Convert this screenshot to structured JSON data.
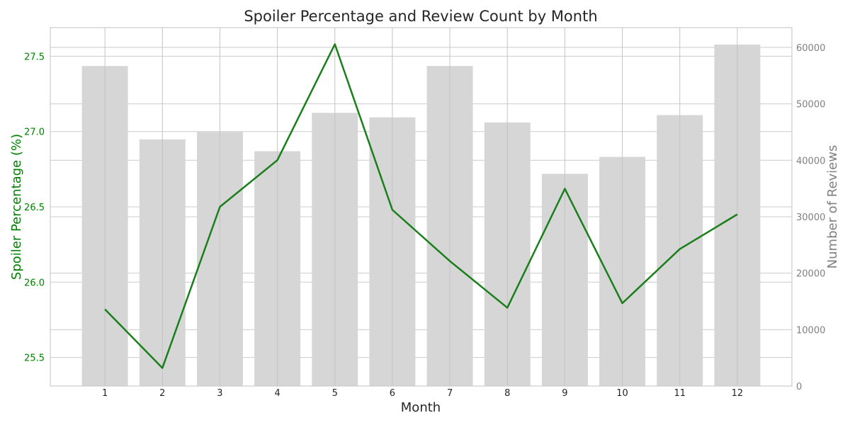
{
  "chart_data": {
    "type": "bar",
    "title": "Spoiler Percentage and Review Count by Month",
    "xlabel": "Month",
    "ylabel_left": "Spoiler Percentage (%)",
    "ylabel_right": "Number of Reviews",
    "categories": [
      "1",
      "2",
      "3",
      "4",
      "5",
      "6",
      "7",
      "8",
      "9",
      "10",
      "11",
      "12"
    ],
    "series": [
      {
        "name": "Number of Reviews",
        "kind": "bar",
        "axis": "right",
        "color": "#d6d6d6",
        "values": [
          56700,
          43700,
          45000,
          41600,
          48400,
          47600,
          56700,
          46700,
          37600,
          40600,
          48000,
          60500
        ]
      },
      {
        "name": "Spoiler Percentage (%)",
        "kind": "line",
        "axis": "left",
        "color": "#1a7f1a",
        "values": [
          25.82,
          25.43,
          26.5,
          26.81,
          27.58,
          26.48,
          26.14,
          25.83,
          26.62,
          25.86,
          26.22,
          26.45
        ]
      }
    ],
    "ylim_left": [
      25.31,
      27.69
    ],
    "ylim_right": [
      0,
      63500
    ],
    "yticks_left": [
      25.5,
      26.0,
      26.5,
      27.0,
      27.5
    ],
    "ytick_labels_left": [
      "25.5",
      "26.0",
      "26.5",
      "27.0",
      "27.5"
    ],
    "yticks_right": [
      0,
      10000,
      20000,
      30000,
      40000,
      50000,
      60000
    ],
    "ytick_labels_right": [
      "0",
      "10000",
      "20000",
      "30000",
      "40000",
      "50000",
      "60000"
    ],
    "grid": true,
    "colors": {
      "left_axis": "#008000",
      "right_axis": "#808080",
      "grid": "#cccccc",
      "text": "#262626"
    }
  }
}
